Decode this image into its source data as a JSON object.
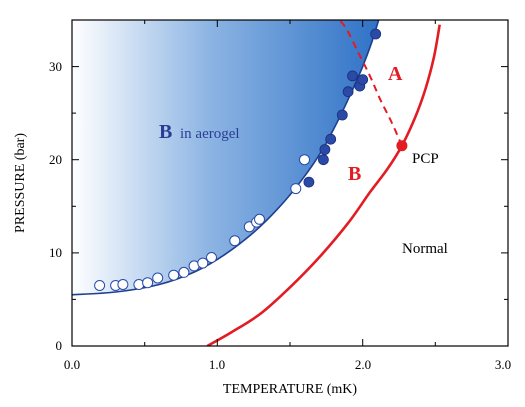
{
  "chart_data": {
    "type": "scatter",
    "xlabel": "TEMPERATURE (mK)",
    "ylabel": "PRESSURE (bar)",
    "xlim": [
      0,
      3.0
    ],
    "ylim": [
      0,
      35
    ],
    "x_ticks": [
      "0.0",
      "1.0",
      "2.0",
      "3.0"
    ],
    "y_ticks": [
      "0",
      "10",
      "20",
      "30"
    ],
    "grid": false,
    "colors": {
      "bulk_line": "#e31b23",
      "aerogel_fill": "#3d7ecb",
      "aerogel_line": "#1f3f8f",
      "filled_points": "#2b4aa8",
      "open_points_edge": "#2b4aa8",
      "label_blue": "#2b3e94",
      "label_red": "#e31b23"
    },
    "labels": {
      "region_A": "A",
      "region_B": "B",
      "aerogel_B": "B",
      "aerogel_text": "in aerogel",
      "pcp": "PCP",
      "normal": "Normal"
    },
    "pcp_point": {
      "x": 2.27,
      "y": 21.5
    },
    "bulk_B_transition": {
      "x": [
        0.93,
        1.1,
        1.3,
        1.5,
        1.7,
        1.9,
        2.05,
        2.17,
        2.27,
        2.36,
        2.43,
        2.49,
        2.53
      ],
      "y": [
        0,
        1.5,
        3.5,
        6.3,
        9.5,
        13.2,
        16.5,
        19.0,
        21.5,
        24.5,
        27.5,
        31.0,
        34.5
      ]
    },
    "AB_transition": {
      "x": [
        2.27,
        2.2,
        2.12,
        2.05,
        1.97,
        1.89,
        1.84
      ],
      "y": [
        21.5,
        24.0,
        26.5,
        29.0,
        31.5,
        34.0,
        35.0
      ]
    },
    "aerogel_boundary": {
      "x": [
        0.0,
        0.3,
        0.6,
        0.85,
        1.05,
        1.25,
        1.42,
        1.58,
        1.72,
        1.84,
        1.93,
        2.0,
        2.06,
        2.11
      ],
      "y": [
        5.5,
        5.8,
        6.6,
        8.0,
        9.8,
        12.2,
        14.8,
        17.8,
        21.0,
        24.5,
        27.5,
        30.0,
        32.5,
        35.0
      ]
    },
    "series": [
      {
        "marker": "open",
        "x": [
          0.19,
          0.3,
          0.35,
          0.46,
          0.52,
          0.59,
          0.7,
          0.77,
          0.84,
          0.9,
          0.96,
          1.12,
          1.22,
          1.27,
          1.29,
          1.54,
          1.6
        ],
        "y": [
          6.5,
          6.5,
          6.6,
          6.6,
          6.8,
          7.3,
          7.6,
          7.9,
          8.6,
          8.9,
          9.5,
          11.3,
          12.8,
          13.3,
          13.6,
          16.9,
          20.0
        ]
      },
      {
        "marker": "filled",
        "x": [
          1.63,
          1.73,
          1.74,
          1.78,
          1.86,
          1.9,
          1.93,
          1.98,
          2.0,
          2.09
        ],
        "y": [
          17.6,
          20.0,
          21.1,
          22.2,
          24.8,
          27.3,
          29.0,
          27.9,
          28.6,
          33.5
        ]
      }
    ]
  }
}
